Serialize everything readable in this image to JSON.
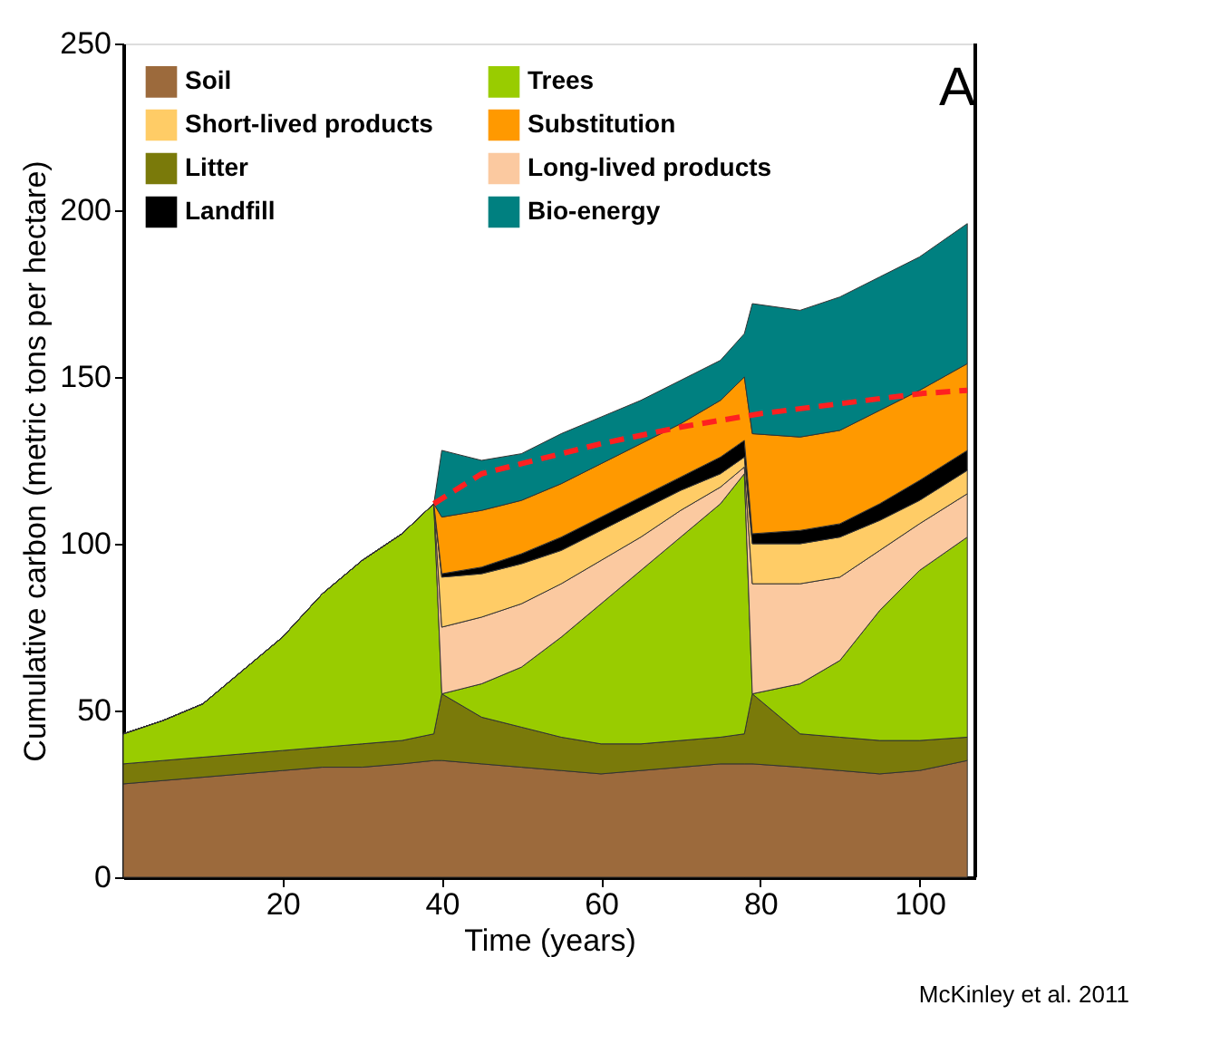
{
  "chart_data": {
    "type": "area",
    "stacked": true,
    "xlabel": "Time (years)",
    "ylabel": "Cumulative carbon (metric tons per hectare)",
    "x": [
      0,
      5,
      10,
      15,
      20,
      25,
      30,
      35,
      39,
      40,
      45,
      50,
      55,
      60,
      65,
      70,
      75,
      78,
      79,
      85,
      90,
      95,
      100,
      106
    ],
    "xlim": [
      0,
      107
    ],
    "xticks": [
      20,
      40,
      60,
      80,
      100
    ],
    "ylim": [
      0,
      250
    ],
    "yticks": [
      0,
      50,
      100,
      150,
      200,
      250
    ],
    "grid": false,
    "legend": "top left",
    "series": [
      {
        "name": "Soil",
        "color": "#9c6a3c",
        "values": [
          28,
          29,
          30,
          31,
          32,
          33,
          33,
          34,
          35,
          35,
          34,
          33,
          32,
          31,
          32,
          33,
          34,
          34,
          34,
          33,
          32,
          31,
          32,
          35
        ]
      },
      {
        "name": "Litter",
        "color": "#7a7a0a",
        "values": [
          6,
          6,
          6,
          6,
          6,
          6,
          7,
          7,
          8,
          20,
          14,
          12,
          10,
          9,
          8,
          8,
          8,
          9,
          21,
          10,
          10,
          10,
          9,
          7
        ]
      },
      {
        "name": "Trees",
        "color": "#99cc00",
        "values": [
          9,
          12,
          16,
          25,
          34,
          46,
          55,
          62,
          69,
          0,
          10,
          18,
          30,
          42,
          52,
          61,
          70,
          78,
          0,
          15,
          23,
          39,
          51,
          60
        ]
      },
      {
        "name": "Long-lived products",
        "color": "#fbc9a0",
        "values": [
          0,
          0,
          0,
          0,
          0,
          0,
          0,
          0,
          0,
          20,
          20,
          19,
          16,
          13,
          10,
          8,
          5,
          2,
          33,
          30,
          25,
          18,
          14,
          13
        ]
      },
      {
        "name": "Short-lived products",
        "color": "#ffcc66",
        "values": [
          0,
          0,
          0,
          0,
          0,
          0,
          0,
          0,
          0,
          15,
          13,
          12,
          10,
          9,
          8,
          6,
          4,
          3,
          12,
          12,
          12,
          9,
          7,
          7
        ]
      },
      {
        "name": "Landfill",
        "color": "#000000",
        "values": [
          0,
          0,
          0,
          0,
          0,
          0,
          0,
          0,
          0,
          1,
          2,
          3,
          4,
          4,
          4,
          4,
          5,
          5,
          3,
          4,
          4,
          5,
          6,
          6
        ]
      },
      {
        "name": "Substitution",
        "color": "#ff9900",
        "values": [
          0,
          0,
          0,
          0,
          0,
          0,
          0,
          0,
          0,
          17,
          17,
          16,
          16,
          16,
          16,
          16,
          17,
          19,
          30,
          28,
          28,
          28,
          27,
          26
        ]
      },
      {
        "name": "Bio-energy",
        "color": "#008080",
        "values": [
          0,
          0,
          0,
          0,
          0,
          0,
          0,
          0,
          0,
          20,
          15,
          14,
          15,
          14,
          13,
          13,
          12,
          13,
          39,
          38,
          40,
          40,
          40,
          42
        ]
      },
      {
        "type": "line",
        "line_style": "dashed",
        "color": "#ff2020",
        "x": [
          39,
          45,
          50,
          60,
          70,
          80,
          90,
          100,
          106
        ],
        "values": [
          112,
          121,
          124,
          130,
          135,
          139,
          142,
          145,
          146
        ]
      }
    ],
    "annotations": [
      "A",
      "McKinley et al. 2011"
    ]
  }
}
